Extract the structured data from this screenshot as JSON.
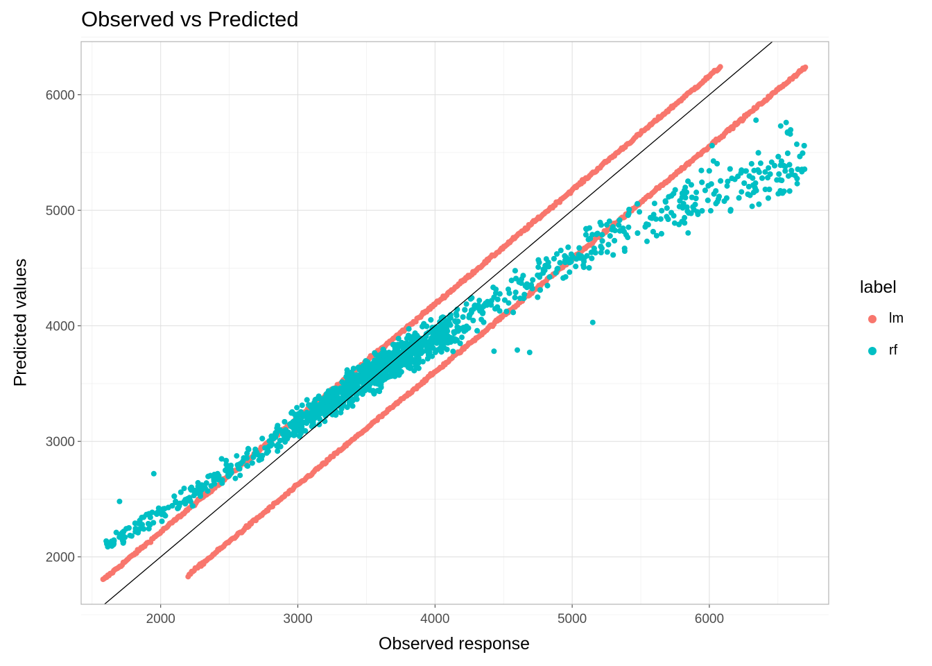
{
  "chart_data": {
    "type": "scatter",
    "title": "Observed vs Predicted",
    "xlabel": "Observed response",
    "ylabel": "Predicted values",
    "xlim": [
      1420,
      6870
    ],
    "ylim": [
      1590,
      6460
    ],
    "x_ticks": [
      2000,
      3000,
      4000,
      5000,
      6000
    ],
    "y_ticks": [
      2000,
      3000,
      4000,
      5000,
      6000
    ],
    "grid": true,
    "legend": {
      "title": "label",
      "placement": "right",
      "entries": [
        {
          "label": "lm",
          "color": "#F8766D"
        },
        {
          "label": "rf",
          "color": "#00BFC4"
        }
      ]
    },
    "reference_line": {
      "slope": 1,
      "intercept": 0,
      "color": "#000000"
    },
    "series": [
      {
        "name": "lm",
        "color": "#F8766D",
        "bands": [
          {
            "x_start": 1580,
            "x_end": 6080,
            "y_start": 1800,
            "y_end": 6240
          },
          {
            "x_start": 2200,
            "x_end": 6700,
            "y_start": 1840,
            "y_end": 6240
          }
        ]
      },
      {
        "name": "rf",
        "color": "#00BFC4",
        "trend": [
          {
            "x": 1600,
            "y": 2100
          },
          {
            "x": 2000,
            "y": 2380
          },
          {
            "x": 2500,
            "y": 2750
          },
          {
            "x": 3000,
            "y": 3150
          },
          {
            "x": 3500,
            "y": 3550
          },
          {
            "x": 4000,
            "y": 3900
          },
          {
            "x": 4500,
            "y": 4250
          },
          {
            "x": 5000,
            "y": 4600
          },
          {
            "x": 5500,
            "y": 4900
          },
          {
            "x": 6000,
            "y": 5150
          },
          {
            "x": 6700,
            "y": 5380
          }
        ],
        "outliers": [
          {
            "x": 6020,
            "y": 5560
          },
          {
            "x": 6340,
            "y": 5780
          },
          {
            "x": 6520,
            "y": 5730
          },
          {
            "x": 6560,
            "y": 5760
          },
          {
            "x": 6570,
            "y": 5670
          },
          {
            "x": 6590,
            "y": 5660
          },
          {
            "x": 1950,
            "y": 2720
          },
          {
            "x": 1700,
            "y": 2480
          },
          {
            "x": 4430,
            "y": 3780
          },
          {
            "x": 4600,
            "y": 3790
          },
          {
            "x": 4690,
            "y": 3770
          },
          {
            "x": 5150,
            "y": 4030
          }
        ]
      }
    ]
  }
}
